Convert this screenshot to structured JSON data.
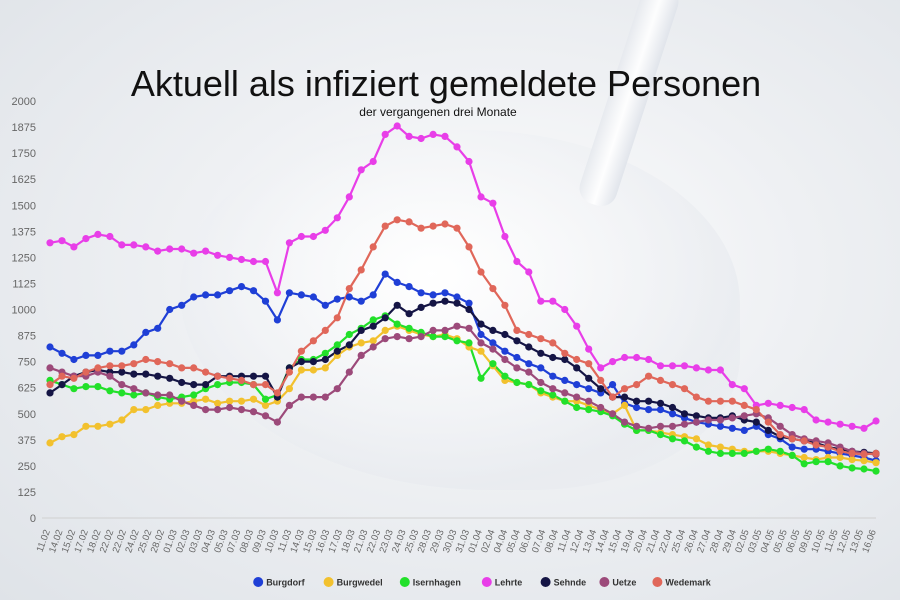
{
  "chart_data": {
    "type": "line",
    "title": "Aktuell als infiziert gemeldete Personen",
    "subtitle": "der vergangenen drei Monate",
    "ylim": [
      0,
      2000
    ],
    "yticks": [
      0,
      125,
      250,
      375,
      500,
      625,
      750,
      875,
      1000,
      1125,
      1250,
      1375,
      1500,
      1625,
      1750,
      1875,
      2000
    ],
    "grid": false,
    "legend_position": "bottom",
    "x": [
      "11.02",
      "13.02",
      "14.02",
      "15.02",
      "16.02",
      "17.02",
      "18.02",
      "19.02",
      "22.02",
      "23.02",
      "24.02",
      "25.02",
      "26.02",
      "28.02",
      "01.03",
      "02.03",
      "03.03",
      "04.03",
      "05.03",
      "07.03",
      "08.03",
      "09.03",
      "10.03",
      "11.03",
      "14.03",
      "15.03",
      "16.03",
      "17.03",
      "18.03",
      "21.03",
      "22.03",
      "23.03",
      "24.03",
      "25.03",
      "28.03",
      "29.03",
      "30.03",
      "31.03",
      "01.04",
      "02.04",
      "04.04",
      "05.04",
      "06.04",
      "07.04",
      "08.04",
      "11.04",
      "12.04",
      "13.04",
      "14.04",
      "15.04",
      "19.04",
      "20.04",
      "21.04",
      "22.04",
      "25.04",
      "26.04",
      "27.04",
      "28.04",
      "29.04",
      "02.05",
      "03.05",
      "04.05",
      "05.05",
      "06.05",
      "09.05",
      "10.05",
      "11.05",
      "12.05",
      "13.05",
      "16.06"
    ],
    "xticks": [
      "11.02",
      "14.02",
      "15.02",
      "17.02",
      "18.02",
      "22.02",
      "22.02",
      "24.02",
      "25.02",
      "28.02",
      "01.03",
      "02.03",
      "03.03",
      "04.03",
      "05.03",
      "07.03",
      "08.03",
      "09.03",
      "10.03",
      "11.03",
      "14.03",
      "15.03",
      "16.03",
      "17.03",
      "18.03",
      "21.03",
      "22.03",
      "23.03",
      "24.03",
      "25.03",
      "28.03",
      "29.03",
      "30.03",
      "31.03",
      "01.04",
      "02.04",
      "04.04",
      "05.04",
      "06.04",
      "07.04",
      "08.04",
      "11.04",
      "12.04",
      "13.04",
      "14.04",
      "15.04",
      "19.04",
      "20.04",
      "21.04",
      "22.04",
      "25.04",
      "26.04",
      "27.04",
      "28.04",
      "29.04",
      "02.05",
      "03.05",
      "04.05",
      "05.05",
      "06.05",
      "09.05",
      "10.05",
      "11.05",
      "12.05",
      "13.05",
      "16.06"
    ],
    "series": [
      {
        "name": "Burgdorf",
        "color": "#1f3fd6",
        "values": [
          820,
          790,
          760,
          780,
          780,
          800,
          800,
          830,
          890,
          910,
          1000,
          1020,
          1060,
          1070,
          1070,
          1090,
          1110,
          1090,
          1040,
          950,
          1080,
          1070,
          1060,
          1020,
          1050,
          1060,
          1040,
          1070,
          1170,
          1130,
          1110,
          1080,
          1070,
          1080,
          1060,
          1030,
          880,
          840,
          800,
          770,
          740,
          720,
          680,
          660,
          640,
          620,
          600,
          640,
          550,
          530,
          520,
          520,
          500,
          480,
          460,
          450,
          440,
          430,
          420,
          440,
          400,
          380,
          340,
          330,
          330,
          320,
          310,
          300,
          290,
          275
        ]
      },
      {
        "name": "Burgwedel",
        "color": "#f2c12e",
        "values": [
          360,
          390,
          400,
          440,
          440,
          450,
          470,
          520,
          520,
          540,
          550,
          550,
          560,
          570,
          550,
          560,
          560,
          570,
          540,
          560,
          620,
          710,
          710,
          720,
          780,
          820,
          840,
          850,
          900,
          920,
          900,
          880,
          870,
          880,
          860,
          820,
          800,
          730,
          660,
          650,
          640,
          600,
          580,
          560,
          560,
          540,
          520,
          500,
          540,
          420,
          420,
          410,
          400,
          390,
          380,
          350,
          340,
          330,
          320,
          320,
          320,
          310,
          300,
          290,
          280,
          290,
          290,
          280,
          275,
          265
        ]
      },
      {
        "name": "Isernhagen",
        "color": "#22e02a",
        "values": [
          660,
          640,
          620,
          630,
          630,
          610,
          600,
          590,
          600,
          580,
          570,
          580,
          590,
          620,
          640,
          650,
          650,
          640,
          570,
          590,
          720,
          760,
          760,
          790,
          830,
          880,
          910,
          950,
          970,
          930,
          910,
          890,
          870,
          870,
          850,
          840,
          670,
          740,
          680,
          650,
          640,
          610,
          590,
          560,
          530,
          520,
          510,
          490,
          450,
          420,
          420,
          400,
          380,
          370,
          340,
          320,
          310,
          310,
          310,
          320,
          330,
          320,
          300,
          260,
          270,
          270,
          250,
          240,
          235,
          225
        ]
      },
      {
        "name": "Lehrte",
        "color": "#e83ee8",
        "values": [
          1320,
          1330,
          1300,
          1340,
          1360,
          1350,
          1310,
          1310,
          1300,
          1280,
          1290,
          1290,
          1270,
          1280,
          1260,
          1250,
          1240,
          1230,
          1230,
          1080,
          1320,
          1350,
          1350,
          1380,
          1440,
          1540,
          1670,
          1710,
          1840,
          1880,
          1830,
          1820,
          1840,
          1830,
          1780,
          1710,
          1540,
          1510,
          1350,
          1230,
          1180,
          1040,
          1040,
          1000,
          920,
          810,
          720,
          750,
          770,
          770,
          760,
          730,
          730,
          730,
          720,
          710,
          710,
          640,
          620,
          540,
          550,
          540,
          530,
          520,
          470,
          460,
          450,
          440,
          430,
          465
        ]
      },
      {
        "name": "Sehnde",
        "color": "#151545",
        "values": [
          600,
          640,
          680,
          700,
          710,
          700,
          700,
          690,
          690,
          680,
          670,
          650,
          640,
          640,
          680,
          680,
          680,
          680,
          680,
          580,
          720,
          750,
          750,
          760,
          800,
          830,
          900,
          920,
          960,
          1020,
          980,
          1010,
          1030,
          1040,
          1030,
          1000,
          930,
          900,
          880,
          850,
          820,
          790,
          770,
          760,
          720,
          670,
          620,
          580,
          580,
          560,
          560,
          550,
          530,
          500,
          490,
          480,
          480,
          490,
          470,
          460,
          420,
          390,
          380,
          370,
          360,
          340,
          330,
          320,
          315,
          310
        ]
      },
      {
        "name": "Uetze",
        "color": "#9c4a7a",
        "values": [
          720,
          700,
          680,
          680,
          700,
          680,
          640,
          620,
          600,
          590,
          590,
          560,
          540,
          520,
          520,
          530,
          520,
          510,
          490,
          460,
          540,
          580,
          580,
          580,
          620,
          700,
          780,
          820,
          860,
          870,
          860,
          870,
          900,
          900,
          920,
          910,
          840,
          810,
          760,
          720,
          700,
          650,
          620,
          600,
          580,
          560,
          530,
          500,
          460,
          440,
          430,
          440,
          440,
          450,
          460,
          470,
          470,
          480,
          490,
          500,
          480,
          440,
          400,
          380,
          370,
          360,
          340,
          320,
          310,
          305
        ]
      },
      {
        "name": "Wedemark",
        "color": "#e0675a",
        "values": [
          640,
          680,
          670,
          700,
          720,
          730,
          730,
          740,
          760,
          750,
          740,
          720,
          720,
          700,
          680,
          670,
          660,
          640,
          640,
          600,
          700,
          800,
          850,
          900,
          960,
          1100,
          1190,
          1300,
          1400,
          1430,
          1420,
          1390,
          1400,
          1410,
          1390,
          1300,
          1180,
          1100,
          1020,
          900,
          880,
          860,
          840,
          790,
          760,
          740,
          660,
          580,
          620,
          640,
          680,
          660,
          640,
          620,
          580,
          560,
          560,
          560,
          540,
          520,
          460,
          400,
          380,
          370,
          350,
          340,
          320,
          310,
          305,
          310
        ]
      }
    ]
  }
}
